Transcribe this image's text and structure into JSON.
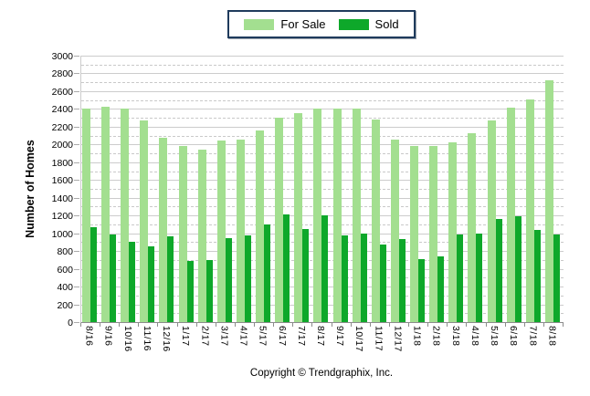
{
  "legend": {
    "for_sale_label": "For Sale",
    "sold_label": "Sold"
  },
  "ylabel": "Number of Homes",
  "footer": "Copyright © Trendgraphix, Inc.",
  "colors": {
    "for_sale": "#a3df90",
    "sold": "#0ea82a",
    "gridline": "#cccccc",
    "axis": "#8c8c8c",
    "legend_border": "#1f3b5c"
  },
  "chart_data": {
    "type": "bar",
    "title": "",
    "xlabel": "",
    "ylabel": "Number of Homes",
    "ylim": [
      0,
      3000
    ],
    "ytick_step": 200,
    "grid": true,
    "legend_position": "top-center",
    "categories": [
      "8/16",
      "9/16",
      "10/16",
      "11/16",
      "12/16",
      "1/17",
      "2/17",
      "3/17",
      "4/17",
      "5/17",
      "6/17",
      "7/17",
      "8/17",
      "9/17",
      "10/17",
      "11/17",
      "12/17",
      "1/18",
      "2/18",
      "3/18",
      "4/18",
      "5/18",
      "6/18",
      "7/18",
      "8/18"
    ],
    "series": [
      {
        "name": "For Sale",
        "color": "#a3df90",
        "values": [
          2400,
          2420,
          2400,
          2270,
          2080,
          1980,
          1940,
          2040,
          2050,
          2160,
          2300,
          2350,
          2400,
          2400,
          2400,
          2280,
          2050,
          1980,
          1980,
          2020,
          2130,
          2270,
          2410,
          2510,
          2720
        ]
      },
      {
        "name": "Sold",
        "color": "#0ea82a",
        "values": [
          1070,
          990,
          900,
          850,
          970,
          690,
          700,
          950,
          980,
          1100,
          1210,
          1050,
          1200,
          980,
          1000,
          870,
          930,
          710,
          740,
          990,
          1000,
          1160,
          1190,
          1040,
          990
        ]
      }
    ]
  }
}
